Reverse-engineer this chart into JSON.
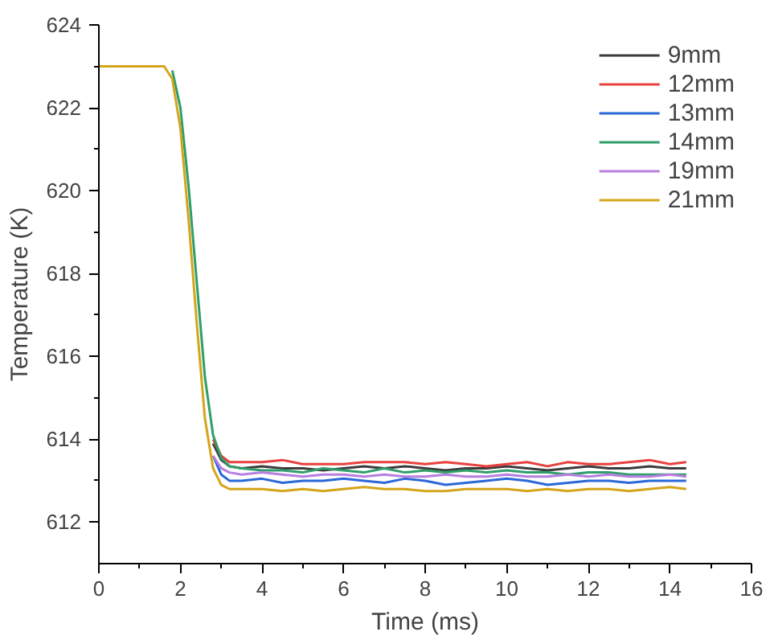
{
  "chart_data": {
    "type": "line",
    "xlabel": "Time (ms)",
    "ylabel": "Temperature (K)",
    "x": [
      0,
      1.6,
      1.8,
      2.0,
      2.2,
      2.4,
      2.6,
      2.8,
      3.0,
      3.2,
      3.5,
      4,
      4.5,
      5,
      5.5,
      6,
      6.5,
      7,
      7.5,
      8,
      8.5,
      9,
      9.5,
      10,
      10.5,
      11,
      11.5,
      12,
      12.5,
      13,
      13.5,
      14,
      14.4
    ],
    "xlim": [
      0,
      16
    ],
    "ylim": [
      611,
      624
    ],
    "xticks": [
      0,
      {
        "value": 1,
        "label": null
      },
      2,
      {
        "value": 3,
        "label": null
      },
      4,
      {
        "value": 5,
        "label": null
      },
      6,
      {
        "value": 7,
        "label": null
      },
      8,
      {
        "value": 9,
        "label": null
      },
      10,
      {
        "value": 11,
        "label": null
      },
      12,
      {
        "value": 13,
        "label": null
      },
      14,
      {
        "value": 15,
        "label": null
      },
      16
    ],
    "yticks": [
      612,
      {
        "value": 613,
        "label": null
      },
      614,
      {
        "value": 615,
        "label": null
      },
      616,
      {
        "value": 617,
        "label": null
      },
      618,
      {
        "value": 619,
        "label": null
      },
      620,
      {
        "value": 621,
        "label": null
      },
      622,
      {
        "value": 623,
        "label": null
      },
      624
    ],
    "grid": false,
    "legend": "top right",
    "line_style": "solid",
    "marker": "none",
    "series": [
      {
        "name": "9mm",
        "color": "#3c3c3c",
        "values": [
          null,
          null,
          null,
          null,
          null,
          null,
          null,
          613.9,
          613.5,
          613.35,
          613.3,
          613.35,
          613.3,
          613.3,
          613.25,
          613.3,
          613.35,
          613.3,
          613.35,
          613.3,
          613.25,
          613.3,
          613.3,
          613.35,
          613.3,
          613.25,
          613.3,
          613.35,
          613.3,
          613.3,
          613.35,
          613.3,
          613.3
        ]
      },
      {
        "name": "12mm",
        "color": "#e8413f",
        "values": [
          null,
          null,
          null,
          null,
          null,
          null,
          null,
          614.0,
          613.6,
          613.45,
          613.45,
          613.45,
          613.5,
          613.4,
          613.4,
          613.4,
          613.45,
          613.45,
          613.45,
          613.4,
          613.45,
          613.4,
          613.35,
          613.4,
          613.45,
          613.35,
          613.45,
          613.4,
          613.4,
          613.45,
          613.5,
          613.4,
          613.45
        ]
      },
      {
        "name": "13mm",
        "color": "#2a68d8",
        "values": [
          null,
          null,
          null,
          null,
          null,
          null,
          null,
          613.6,
          613.15,
          613.0,
          613.0,
          613.05,
          612.95,
          613.0,
          613.0,
          613.05,
          613.0,
          612.95,
          613.05,
          613.0,
          612.9,
          612.95,
          613.0,
          613.05,
          613.0,
          612.9,
          612.95,
          613.0,
          613.0,
          612.95,
          613.0,
          613.0,
          613.0
        ]
      },
      {
        "name": "14mm",
        "color": "#2f9e6a",
        "values": [
          null,
          null,
          622.9,
          622.0,
          620.1,
          617.8,
          615.5,
          614.1,
          613.55,
          613.35,
          613.3,
          613.25,
          613.25,
          613.2,
          613.3,
          613.25,
          613.2,
          613.3,
          613.2,
          613.25,
          613.2,
          613.25,
          613.2,
          613.25,
          613.2,
          613.2,
          613.15,
          613.2,
          613.2,
          613.15,
          613.15,
          613.15,
          613.15
        ]
      },
      {
        "name": "19mm",
        "color": "#b77fe0",
        "values": [
          null,
          null,
          null,
          null,
          null,
          null,
          null,
          613.6,
          613.3,
          613.2,
          613.15,
          613.2,
          613.15,
          613.1,
          613.15,
          613.15,
          613.1,
          613.15,
          613.1,
          613.1,
          613.15,
          613.1,
          613.1,
          613.15,
          613.1,
          613.1,
          613.15,
          613.1,
          613.15,
          613.1,
          613.1,
          613.15,
          613.1
        ]
      },
      {
        "name": "21mm",
        "color": "#d4a51b",
        "values": [
          623,
          623,
          622.7,
          621.5,
          619.3,
          616.8,
          614.5,
          613.3,
          612.9,
          612.8,
          612.8,
          612.8,
          612.75,
          612.8,
          612.75,
          612.8,
          612.85,
          612.8,
          612.8,
          612.75,
          612.75,
          612.8,
          612.8,
          612.8,
          612.75,
          612.8,
          612.75,
          612.8,
          612.8,
          612.75,
          612.8,
          612.85,
          612.8
        ]
      }
    ]
  }
}
